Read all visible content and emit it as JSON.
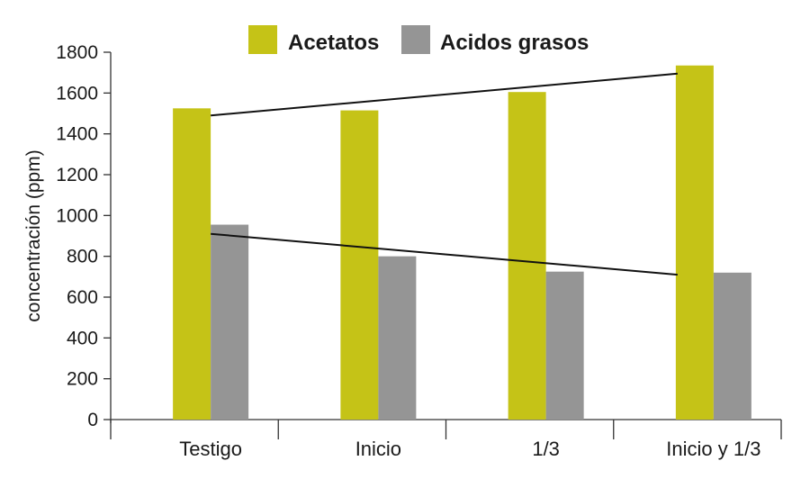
{
  "chart_data": {
    "type": "bar",
    "categories": [
      "Testigo",
      "Inicio",
      "1/3",
      "Inicio y 1/3"
    ],
    "series": [
      {
        "name": "Acetatos",
        "values": [
          1525,
          1515,
          1605,
          1735
        ],
        "color": "#c5c317"
      },
      {
        "name": "Acidos grasos",
        "values": [
          955,
          800,
          725,
          720
        ],
        "color": "#959595"
      }
    ],
    "trend_lines": [
      {
        "series": "Acetatos",
        "from": {
          "category": "Testigo",
          "y": 1490
        },
        "to": {
          "category": "Inicio y 1/3",
          "y": 1695
        }
      },
      {
        "series": "Acidos grasos",
        "from": {
          "category": "Testigo",
          "y": 910
        },
        "to": {
          "category": "Inicio y 1/3",
          "y": 710
        }
      }
    ],
    "ylabel": "concentración (ppm)",
    "xlabel": "",
    "ylim": [
      0,
      1800
    ],
    "yticks": [
      0,
      200,
      400,
      600,
      800,
      1000,
      1200,
      1400,
      1600,
      1800
    ],
    "grid": false,
    "legend_position": "top"
  }
}
